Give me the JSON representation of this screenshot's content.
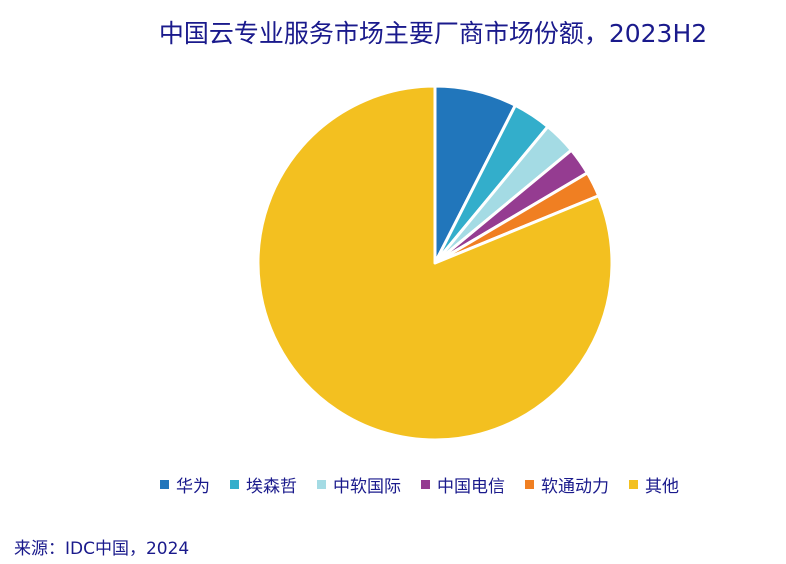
{
  "chart_data": {
    "type": "pie",
    "title": "中国云专业服务市场主要厂商市场份额，2023H2",
    "slices": [
      {
        "label": "华为",
        "value": 7.5,
        "color": "#2176bb"
      },
      {
        "label": "埃森哲",
        "value": 3.5,
        "color": "#33aecb"
      },
      {
        "label": "中软国际",
        "value": 3.0,
        "color": "#a4dbe4"
      },
      {
        "label": "中国电信",
        "value": 2.5,
        "color": "#953c91"
      },
      {
        "label": "软通动力",
        "value": 2.3,
        "color": "#f07f22"
      },
      {
        "label": "其他",
        "value": 81.2,
        "color": "#f3c020"
      }
    ],
    "legend_position": "bottom",
    "start_angle": "12 o'clock",
    "direction": "clockwise"
  },
  "source": "来源：IDC中国，2024"
}
